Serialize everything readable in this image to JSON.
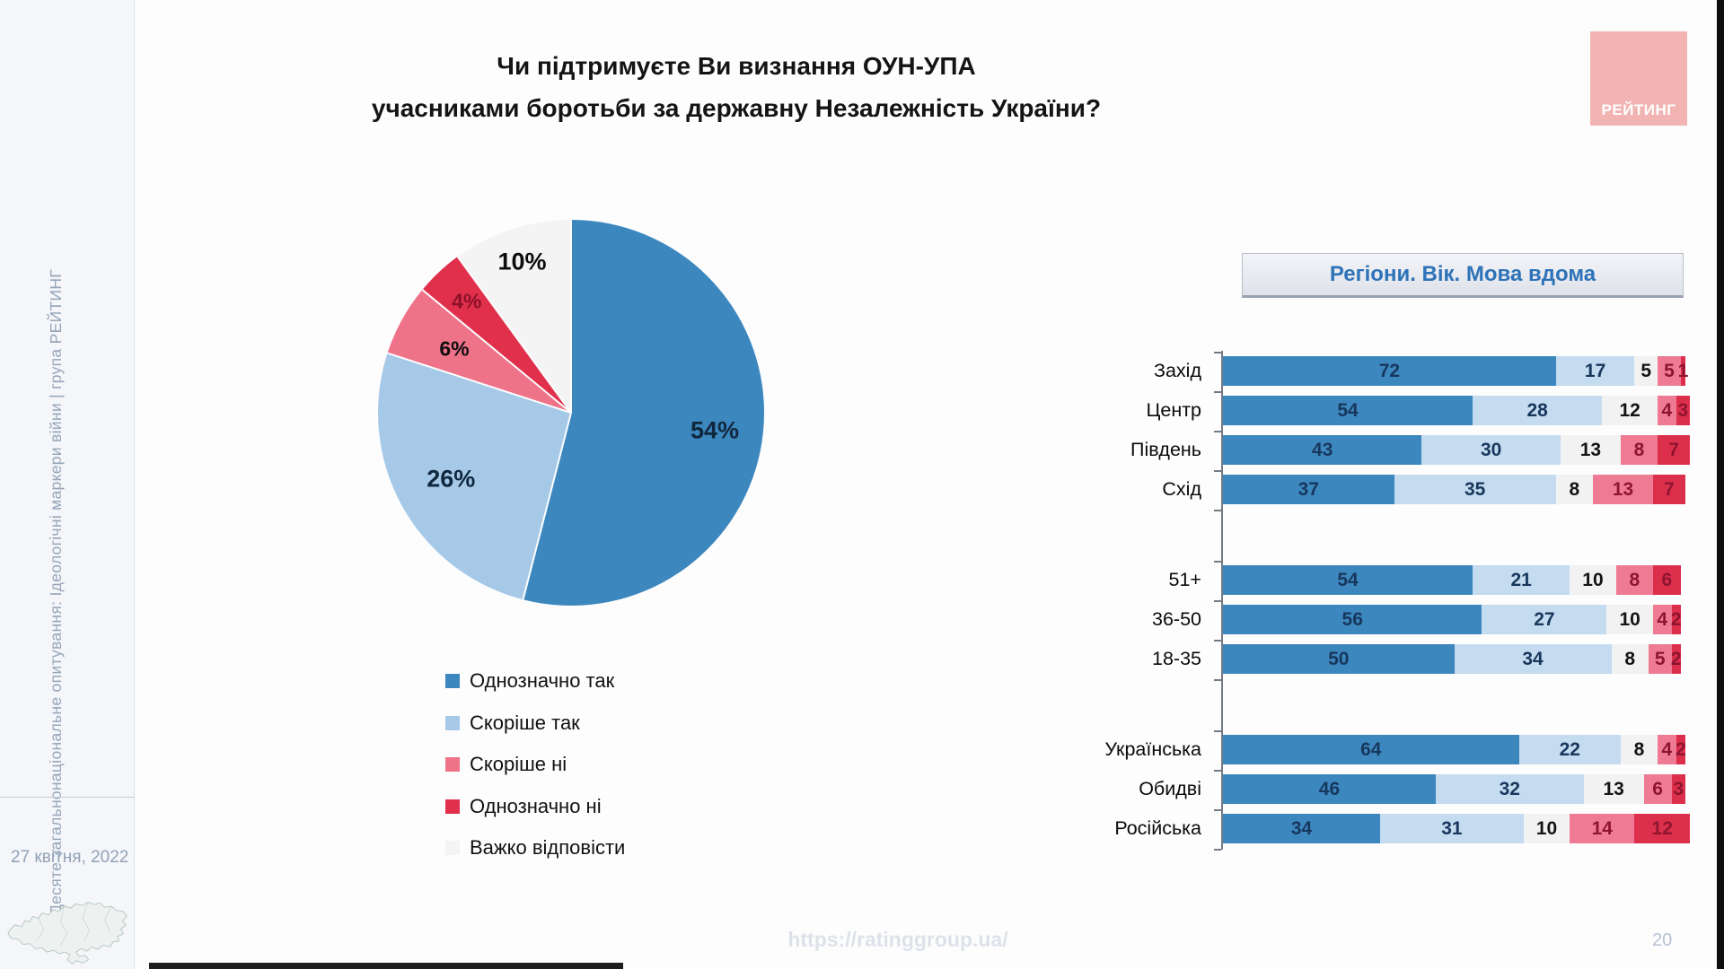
{
  "slide": {
    "title_line1": "Чи підтримуєте Ви визнання ОУН-УПА",
    "title_line2": "учасниками боротьби за державну Незалежність України?",
    "footer_url": "https://ratinggroup.ua/",
    "page_number": "20",
    "logo_text": "РЕЙТИНГ"
  },
  "sidebar": {
    "vertical_text": "Десяте загальнонаціональне опитування: Ідеологічні маркери війни  |  група РЕЙТИНГ",
    "date": "27 квітня, 2022"
  },
  "right_panel": {
    "header": "Регіони. Вік. Мова вдома"
  },
  "colors": {
    "strongly_yes": "#3d87bf",
    "rather_yes_pie": "#a6c9e8",
    "rather_yes_bar": "#c5dbef",
    "rather_no": "#ee7b93",
    "strongly_no": "#dc2f4b",
    "hard_to_say": "#f2f2f3",
    "logo_pink": "#f2b4b2",
    "header_blue": "#2e73b8"
  },
  "chart_data": [
    {
      "type": "pie",
      "title": "Чи підтримуєте Ви визнання ОУН-УПА учасниками боротьби за державну Незалежність України?",
      "labels": [
        "Однозначно так",
        "Скоріше так",
        "Скоріше ні",
        "Однозначно ні",
        "Важко відповісти"
      ],
      "values": [
        54,
        26,
        6,
        4,
        10
      ],
      "colors": [
        "#3d87bf",
        "#a6c9e8",
        "#ee7288",
        "#e0304c",
        "#f4f4f4"
      ],
      "label_colors": [
        "#10273d",
        "#10273d",
        "#0d0d0d",
        "#8c1127",
        "#0d0d0d"
      ],
      "start_angle_deg": 0,
      "direction": "clockwise",
      "legend_position": "below"
    },
    {
      "type": "bar",
      "subtype": "stacked-horizontal",
      "title": "Регіони. Вік. Мова вдома",
      "xlim": [
        0,
        100
      ],
      "segment_order": [
        "Однозначно так",
        "Скоріше так",
        "Важко відповісти",
        "Скоріше ні",
        "Однозначно ні"
      ],
      "colors": [
        "#3d87bf",
        "#c5dbef",
        "#f2f2f3",
        "#ee7b93",
        "#dc2f4b"
      ],
      "number_colors": [
        "#17375d",
        "#17375d",
        "#141414",
        "#8e1430",
        "#8e1430"
      ],
      "groups": [
        {
          "name": "regions",
          "rows": [
            {
              "label": "Захід",
              "values": [
                72,
                17,
                5,
                5,
                1
              ]
            },
            {
              "label": "Центр",
              "values": [
                54,
                28,
                12,
                4,
                3
              ]
            },
            {
              "label": "Південь",
              "values": [
                43,
                30,
                13,
                8,
                7
              ]
            },
            {
              "label": "Схід",
              "values": [
                37,
                35,
                8,
                13,
                7
              ]
            }
          ]
        },
        {
          "name": "age",
          "rows": [
            {
              "label": "51+",
              "values": [
                54,
                21,
                10,
                8,
                6
              ]
            },
            {
              "label": "36-50",
              "values": [
                56,
                27,
                10,
                4,
                2
              ]
            },
            {
              "label": "18-35",
              "values": [
                50,
                34,
                8,
                5,
                2
              ]
            }
          ]
        },
        {
          "name": "language",
          "rows": [
            {
              "label": "Українська",
              "values": [
                64,
                22,
                8,
                4,
                2
              ]
            },
            {
              "label": "Обидві",
              "values": [
                46,
                32,
                13,
                6,
                3
              ]
            },
            {
              "label": "Російська",
              "values": [
                34,
                31,
                10,
                14,
                12
              ]
            }
          ]
        }
      ]
    }
  ]
}
